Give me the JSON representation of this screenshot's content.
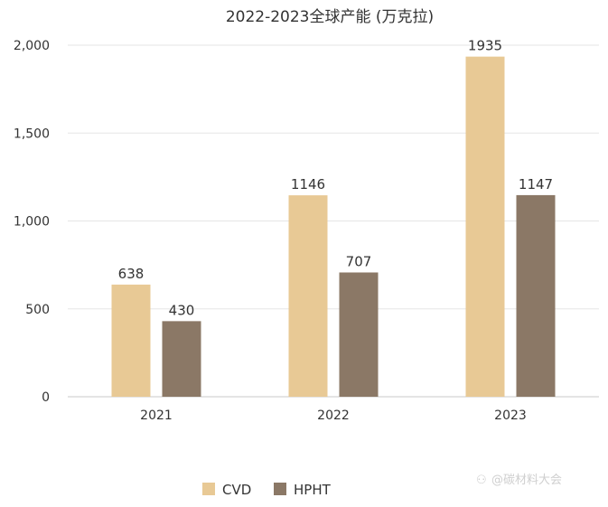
{
  "chart_data": {
    "type": "bar",
    "title": "2022-2023全球产能 (万克拉)",
    "categories": [
      "2021",
      "2022",
      "2023"
    ],
    "series": [
      {
        "name": "CVD",
        "values": [
          638,
          1146,
          1935
        ],
        "color": "#e8c995"
      },
      {
        "name": "HPHT",
        "values": [
          430,
          707,
          1147
        ],
        "color": "#8b7866"
      }
    ],
    "ylim": [
      0,
      2000
    ],
    "yticks": [
      "0",
      "500",
      "1,000",
      "1,500",
      "2,000"
    ],
    "ytick_values": [
      0,
      500,
      1000,
      1500,
      2000
    ],
    "grid": true,
    "legend": "bottom"
  },
  "watermark": "@碳材料大会"
}
